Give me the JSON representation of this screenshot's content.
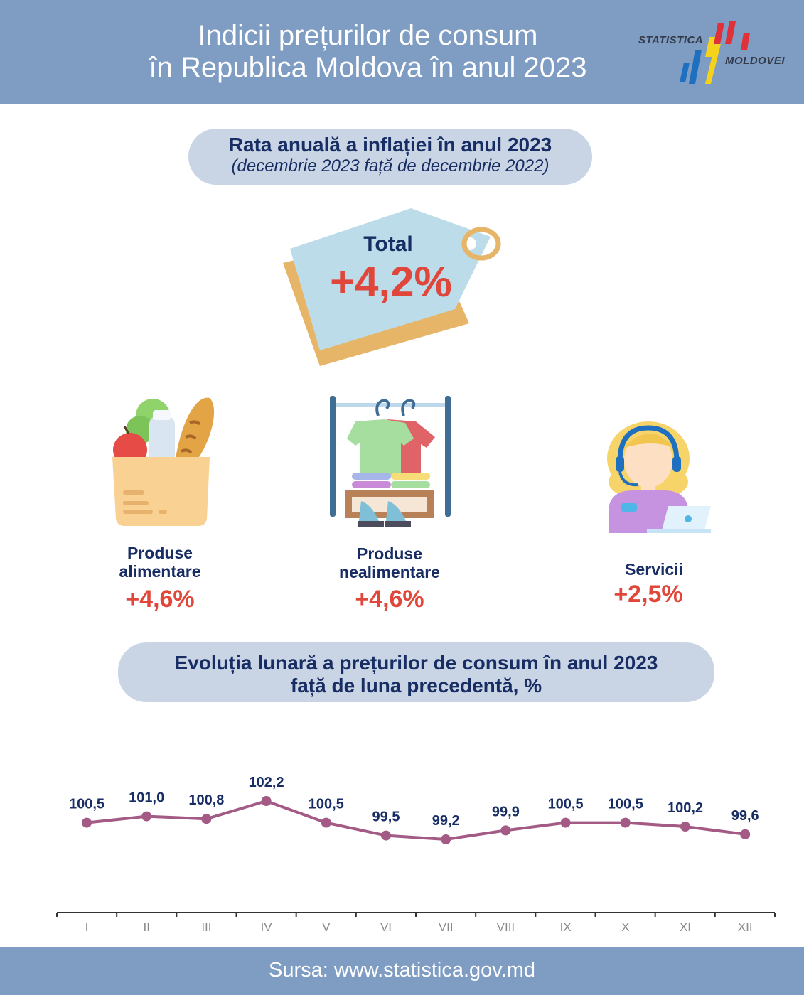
{
  "header": {
    "title_line1": "Indicii prețurilor de consum",
    "title_line2": "în Republica Moldova în anul 2023",
    "logo_word1": "STATISTICA",
    "logo_word2": "MOLDOVEI"
  },
  "inflation_box": {
    "title": "Rata anuală a inflației în anul 2023",
    "subtitle": "(decembrie 2023 față de decembrie 2022)"
  },
  "total": {
    "label": "Total",
    "value": "+4,2%"
  },
  "categories": [
    {
      "icon": "grocery-bag-icon",
      "label_line1": "Produse",
      "label_line2": "alimentare",
      "value": "+4,6%"
    },
    {
      "icon": "clothes-rack-icon",
      "label_line1": "Produse",
      "label_line2": "nealimentare",
      "value": "+4,6%"
    },
    {
      "icon": "call-center-agent-icon",
      "label_line1": "Servicii",
      "label_line2": "",
      "value": "+2,5%"
    }
  ],
  "monthly_box": {
    "title_line1": "Evoluția lunară a prețurilor de consum în anul 2023",
    "title_line2": "față de luna precedentă, %"
  },
  "chart_data": {
    "type": "line",
    "categories": [
      "I",
      "II",
      "III",
      "IV",
      "V",
      "VI",
      "VII",
      "VIII",
      "IX",
      "X",
      "XI",
      "XII"
    ],
    "values": [
      100.5,
      101.0,
      100.8,
      102.2,
      100.5,
      99.5,
      99.2,
      99.9,
      100.5,
      100.5,
      100.2,
      99.6
    ],
    "data_labels": [
      "100,5",
      "101,0",
      "100,8",
      "102,2",
      "100,5",
      "99,5",
      "99,2",
      "99,9",
      "100,5",
      "100,5",
      "100,2",
      "99,6"
    ],
    "line_color": "#a35a85",
    "marker_color": "#a35a85",
    "grid": false,
    "legend": "none"
  },
  "footer": {
    "source": "Sursa: www.statistica.gov.md"
  },
  "colors": {
    "header_bg": "#7f9cc2",
    "pill_bg": "#c9d5e4",
    "dark_text": "#172d63",
    "accent_red": "#e0463a"
  }
}
